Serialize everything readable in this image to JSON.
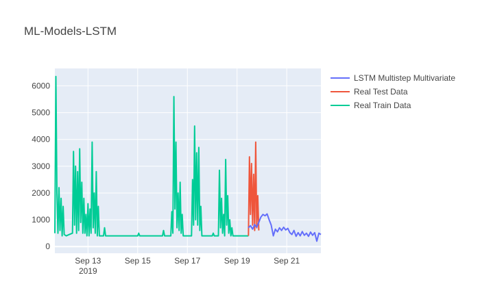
{
  "chart_data": {
    "type": "line",
    "title": "ML-Models-LSTM",
    "xlabel": "",
    "ylabel": "",
    "x_range": [
      "2019-09-11T16:00",
      "2019-09-22T09:00"
    ],
    "ylim": [
      -250,
      6650
    ],
    "y_ticks": [
      0,
      1000,
      2000,
      3000,
      4000,
      5000,
      6000
    ],
    "x_ticks": [
      {
        "date": "2019-09-13",
        "label": "Sep 13",
        "sublabel": "2019"
      },
      {
        "date": "2019-09-15",
        "label": "Sep 15",
        "sublabel": ""
      },
      {
        "date": "2019-09-17",
        "label": "Sep 17",
        "sublabel": ""
      },
      {
        "date": "2019-09-19",
        "label": "Sep 19",
        "sublabel": ""
      },
      {
        "date": "2019-09-21",
        "label": "Sep 21",
        "sublabel": ""
      }
    ],
    "grid": true,
    "legend_position": "top-right",
    "series": [
      {
        "name": "LSTM Multistep Multivariate",
        "color": "#636efa",
        "points": [
          [
            "2019-09-19T11:00",
            700
          ],
          [
            "2019-09-19T13:00",
            780
          ],
          [
            "2019-09-19T15:00",
            650
          ],
          [
            "2019-09-19T17:00",
            820
          ],
          [
            "2019-09-19T19:00",
            720
          ],
          [
            "2019-09-19T21:00",
            900
          ],
          [
            "2019-09-19T23:00",
            1100
          ],
          [
            "2019-09-20T01:00",
            1200
          ],
          [
            "2019-09-20T03:00",
            1150
          ],
          [
            "2019-09-20T05:00",
            1220
          ],
          [
            "2019-09-20T07:00",
            1000
          ],
          [
            "2019-09-20T09:00",
            800
          ],
          [
            "2019-09-20T11:00",
            400
          ],
          [
            "2019-09-20T13:00",
            650
          ],
          [
            "2019-09-20T15:00",
            550
          ],
          [
            "2019-09-20T17:00",
            700
          ],
          [
            "2019-09-20T19:00",
            600
          ],
          [
            "2019-09-20T21:00",
            720
          ],
          [
            "2019-09-20T23:00",
            620
          ],
          [
            "2019-09-21T01:00",
            680
          ],
          [
            "2019-09-21T03:00",
            520
          ],
          [
            "2019-09-21T05:00",
            450
          ],
          [
            "2019-09-21T07:00",
            600
          ],
          [
            "2019-09-21T09:00",
            380
          ],
          [
            "2019-09-21T11:00",
            520
          ],
          [
            "2019-09-21T13:00",
            400
          ],
          [
            "2019-09-21T15:00",
            560
          ],
          [
            "2019-09-21T17:00",
            420
          ],
          [
            "2019-09-21T19:00",
            500
          ],
          [
            "2019-09-21T21:00",
            380
          ],
          [
            "2019-09-21T23:00",
            540
          ],
          [
            "2019-09-22T01:00",
            420
          ],
          [
            "2019-09-22T03:00",
            520
          ],
          [
            "2019-09-22T05:00",
            200
          ],
          [
            "2019-09-22T07:00",
            500
          ],
          [
            "2019-09-22T09:00",
            450
          ]
        ]
      },
      {
        "name": "Real Test Data",
        "color": "#ef553b",
        "points": [
          [
            "2019-09-19T11:00",
            400
          ],
          [
            "2019-09-19T12:00",
            3350
          ],
          [
            "2019-09-19T13:00",
            1200
          ],
          [
            "2019-09-19T14:00",
            3100
          ],
          [
            "2019-09-19T15:00",
            800
          ],
          [
            "2019-09-19T16:00",
            2700
          ],
          [
            "2019-09-19T17:00",
            600
          ],
          [
            "2019-09-19T18:00",
            3900
          ],
          [
            "2019-09-19T19:00",
            700
          ],
          [
            "2019-09-19T20:00",
            1900
          ],
          [
            "2019-09-19T21:00",
            600
          ]
        ]
      },
      {
        "name": "Real Train Data",
        "color": "#00cc96",
        "points": [
          [
            "2019-09-11T16:00",
            500
          ],
          [
            "2019-09-11T17:00",
            6350
          ],
          [
            "2019-09-11T18:00",
            2000
          ],
          [
            "2019-09-11T19:00",
            500
          ],
          [
            "2019-09-11T20:00",
            2200
          ],
          [
            "2019-09-11T21:00",
            600
          ],
          [
            "2019-09-11T22:00",
            1800
          ],
          [
            "2019-09-11T23:00",
            400
          ],
          [
            "2019-09-12T00:00",
            1500
          ],
          [
            "2019-09-12T01:00",
            450
          ],
          [
            "2019-09-12T03:00",
            400
          ],
          [
            "2019-09-12T06:00",
            450
          ],
          [
            "2019-09-12T09:00",
            500
          ],
          [
            "2019-09-12T10:00",
            3550
          ],
          [
            "2019-09-12T11:00",
            800
          ],
          [
            "2019-09-12T12:00",
            3000
          ],
          [
            "2019-09-12T13:00",
            500
          ],
          [
            "2019-09-12T14:00",
            2800
          ],
          [
            "2019-09-12T15:00",
            600
          ],
          [
            "2019-09-12T16:00",
            3650
          ],
          [
            "2019-09-12T17:00",
            900
          ],
          [
            "2019-09-12T18:00",
            2400
          ],
          [
            "2019-09-12T19:00",
            500
          ],
          [
            "2019-09-12T20:00",
            1800
          ],
          [
            "2019-09-12T21:00",
            500
          ],
          [
            "2019-09-12T22:00",
            1200
          ],
          [
            "2019-09-12T23:00",
            400
          ],
          [
            "2019-09-13T00:00",
            1600
          ],
          [
            "2019-09-13T01:00",
            400
          ],
          [
            "2019-09-13T02:00",
            1400
          ],
          [
            "2019-09-13T03:00",
            500
          ],
          [
            "2019-09-13T04:00",
            3900
          ],
          [
            "2019-09-13T05:00",
            700
          ],
          [
            "2019-09-13T06:00",
            2000
          ],
          [
            "2019-09-13T07:00",
            500
          ],
          [
            "2019-09-13T08:00",
            2800
          ],
          [
            "2019-09-13T09:00",
            400
          ],
          [
            "2019-09-13T10:00",
            1500
          ],
          [
            "2019-09-13T11:00",
            400
          ],
          [
            "2019-09-13T13:00",
            400
          ],
          [
            "2019-09-13T15:00",
            400
          ],
          [
            "2019-09-13T16:00",
            700
          ],
          [
            "2019-09-13T17:00",
            400
          ],
          [
            "2019-09-14T00:00",
            400
          ],
          [
            "2019-09-14T12:00",
            400
          ],
          [
            "2019-09-15T00:00",
            400
          ],
          [
            "2019-09-15T01:00",
            500
          ],
          [
            "2019-09-15T02:00",
            400
          ],
          [
            "2019-09-15T12:00",
            400
          ],
          [
            "2019-09-16T00:00",
            400
          ],
          [
            "2019-09-16T01:00",
            600
          ],
          [
            "2019-09-16T02:00",
            400
          ],
          [
            "2019-09-16T08:00",
            400
          ],
          [
            "2019-09-16T09:00",
            1300
          ],
          [
            "2019-09-16T10:00",
            500
          ],
          [
            "2019-09-16T11:00",
            5600
          ],
          [
            "2019-09-16T12:00",
            1400
          ],
          [
            "2019-09-16T13:00",
            3900
          ],
          [
            "2019-09-16T14:00",
            700
          ],
          [
            "2019-09-16T15:00",
            2000
          ],
          [
            "2019-09-16T16:00",
            600
          ],
          [
            "2019-09-16T17:00",
            2400
          ],
          [
            "2019-09-16T18:00",
            500
          ],
          [
            "2019-09-16T19:00",
            1200
          ],
          [
            "2019-09-16T20:00",
            400
          ],
          [
            "2019-09-17T00:00",
            400
          ],
          [
            "2019-09-17T04:00",
            400
          ],
          [
            "2019-09-17T05:00",
            2500
          ],
          [
            "2019-09-17T06:00",
            800
          ],
          [
            "2019-09-17T07:00",
            4500
          ],
          [
            "2019-09-17T08:00",
            1000
          ],
          [
            "2019-09-17T09:00",
            3500
          ],
          [
            "2019-09-17T10:00",
            800
          ],
          [
            "2019-09-17T11:00",
            3700
          ],
          [
            "2019-09-17T12:00",
            600
          ],
          [
            "2019-09-17T13:00",
            1500
          ],
          [
            "2019-09-17T14:00",
            400
          ],
          [
            "2019-09-17T18:00",
            400
          ],
          [
            "2019-09-18T00:00",
            400
          ],
          [
            "2019-09-18T01:00",
            500
          ],
          [
            "2019-09-18T02:00",
            400
          ],
          [
            "2019-09-18T06:00",
            400
          ],
          [
            "2019-09-18T07:00",
            2850
          ],
          [
            "2019-09-18T08:00",
            700
          ],
          [
            "2019-09-18T09:00",
            1800
          ],
          [
            "2019-09-18T10:00",
            500
          ],
          [
            "2019-09-18T11:00",
            1200
          ],
          [
            "2019-09-18T12:00",
            400
          ],
          [
            "2019-09-18T13:00",
            3250
          ],
          [
            "2019-09-18T14:00",
            800
          ],
          [
            "2019-09-18T15:00",
            1900
          ],
          [
            "2019-09-18T16:00",
            500
          ],
          [
            "2019-09-18T17:00",
            1000
          ],
          [
            "2019-09-18T18:00",
            400
          ],
          [
            "2019-09-18T19:00",
            700
          ],
          [
            "2019-09-18T20:00",
            400
          ],
          [
            "2019-09-19T00:00",
            400
          ],
          [
            "2019-09-19T11:00",
            400
          ]
        ]
      }
    ]
  }
}
